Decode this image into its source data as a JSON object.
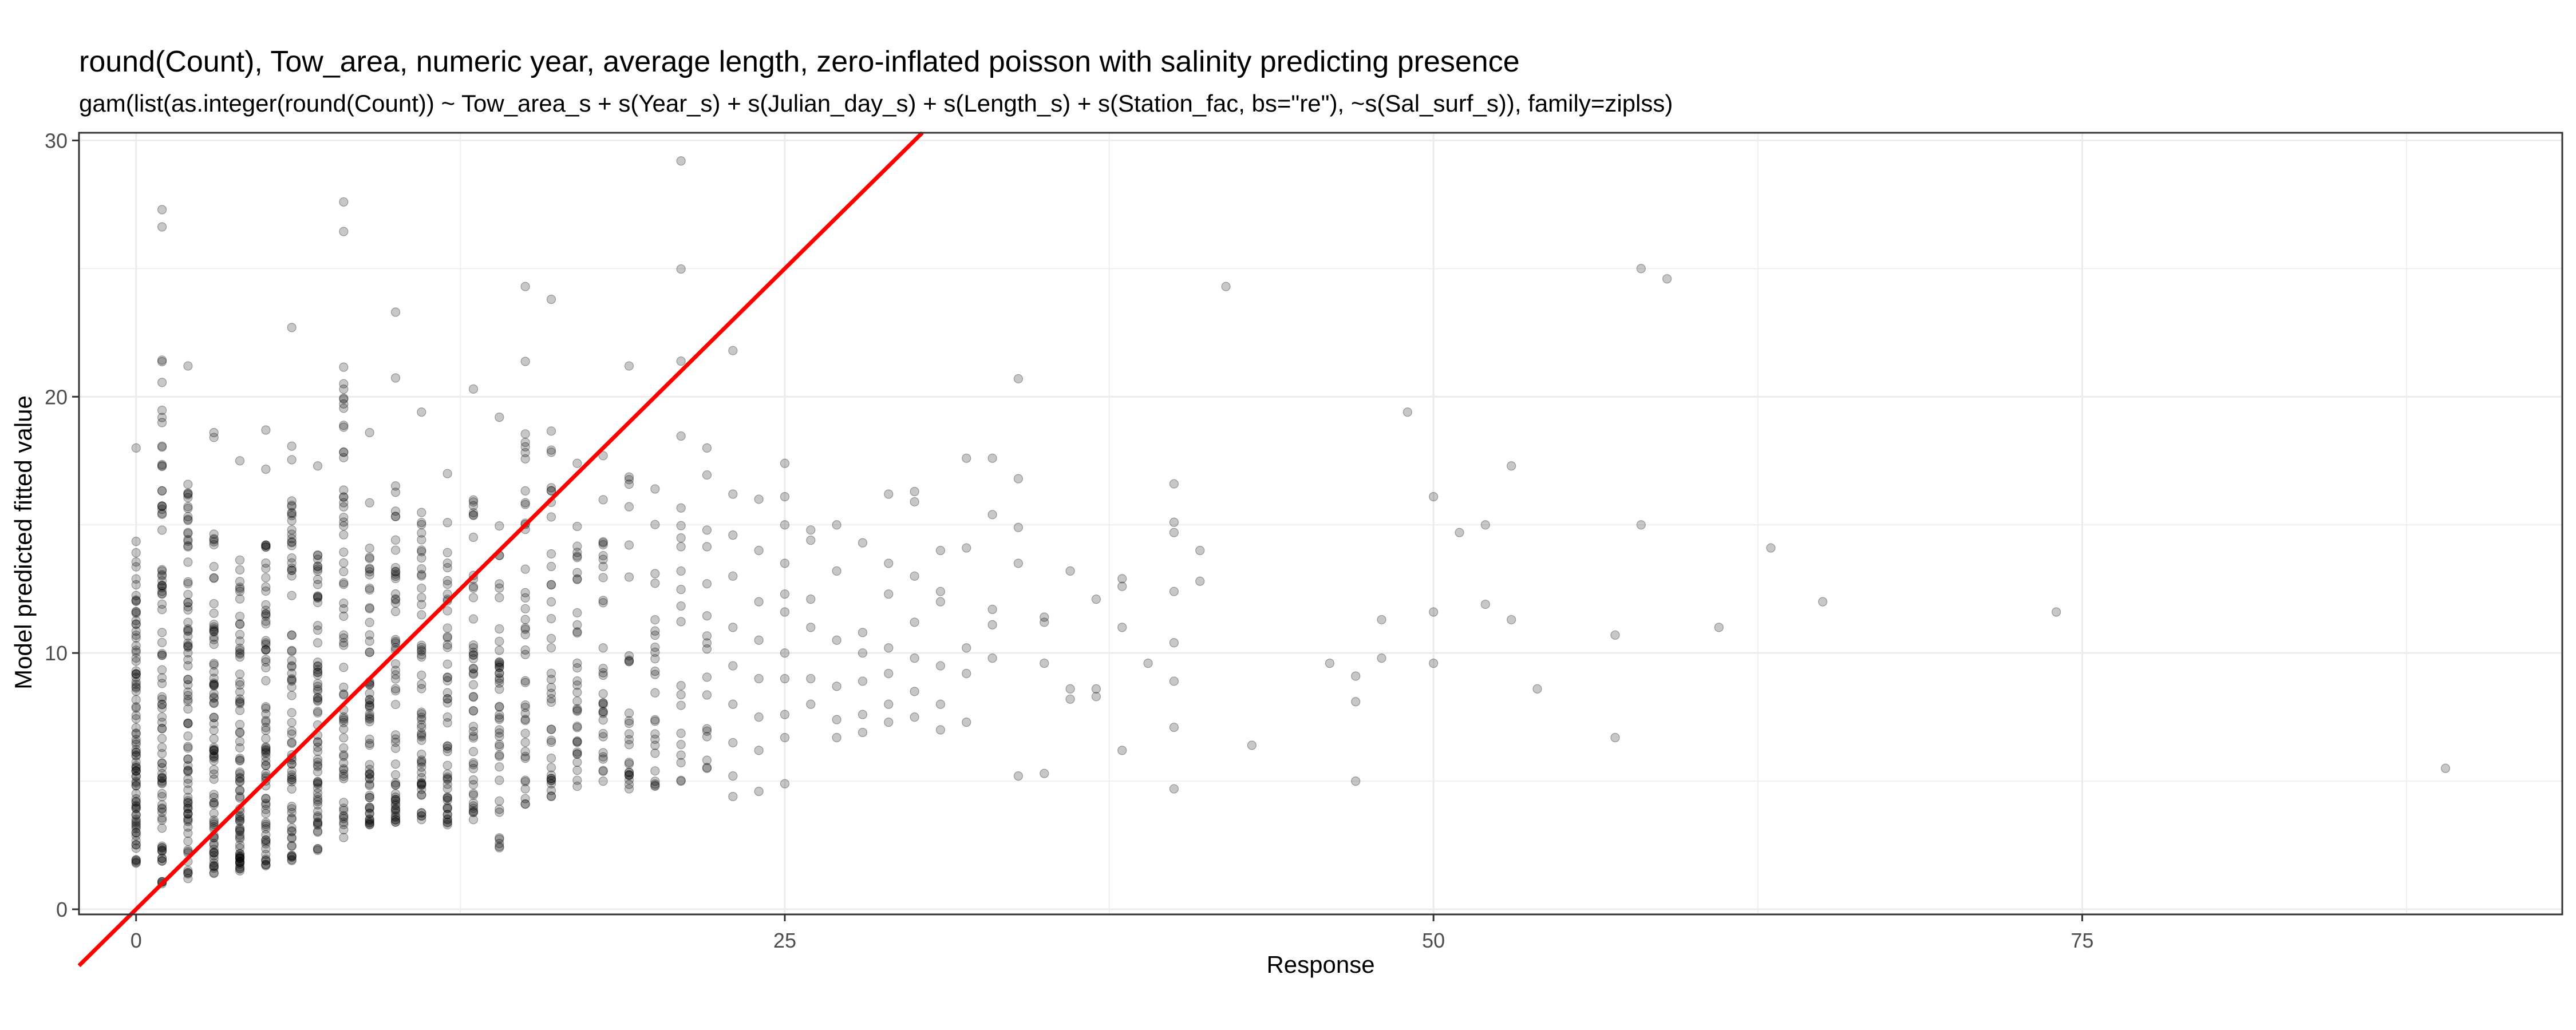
{
  "chart_data": {
    "type": "scatter",
    "title": "round(Count), Tow_area, numeric year, average length, zero-inflated poisson with salinity predicting presence",
    "subtitle": "gam(list(as.integer(round(Count)) ~ Tow_area_s + s(Year_s) + s(Julian_day_s) + s(Length_s) + s(Station_fac, bs=\"re\"), ~s(Sal_surf_s)), family=ziplss)",
    "xlabel": "Response",
    "ylabel": "Model predicted fitted value",
    "xlim": [
      -2.2,
      93.5
    ],
    "ylim": [
      -0.2,
      30.3
    ],
    "x_ticks": [
      0,
      25,
      50,
      75
    ],
    "y_ticks": [
      0,
      10,
      20,
      30
    ],
    "grid": true,
    "theme": "bw",
    "point_color": "#000000",
    "point_opacity": 0.22,
    "reference_line": {
      "slope": 1,
      "intercept": 0,
      "color": "#ff0000"
    },
    "x_columns": [
      0,
      1,
      2,
      3,
      4,
      5,
      6,
      7,
      8,
      9,
      10,
      11,
      12,
      13,
      14,
      15,
      16,
      17,
      18,
      19,
      20,
      21,
      22
    ],
    "column_ranges": [
      [
        1.8,
        18.0
      ],
      [
        1.0,
        27.3
      ],
      [
        1.2,
        21.2
      ],
      [
        1.4,
        18.6
      ],
      [
        1.5,
        17.5
      ],
      [
        1.7,
        18.7
      ],
      [
        1.9,
        22.7
      ],
      [
        2.3,
        17.3
      ],
      [
        2.8,
        27.6
      ],
      [
        3.3,
        18.6
      ],
      [
        3.4,
        23.3
      ],
      [
        3.5,
        19.4
      ],
      [
        3.3,
        17.0
      ],
      [
        3.5,
        20.3
      ],
      [
        2.4,
        19.2
      ],
      [
        4.1,
        24.3
      ],
      [
        4.4,
        23.8
      ],
      [
        4.8,
        17.4
      ],
      [
        5.0,
        17.7
      ],
      [
        4.7,
        21.2
      ],
      [
        4.8,
        16.4
      ],
      [
        5.0,
        29.2
      ],
      [
        5.5,
        18.0
      ]
    ],
    "points": [
      [
        23,
        21.8
      ],
      [
        23,
        16.2
      ],
      [
        23,
        14.6
      ],
      [
        23,
        13.0
      ],
      [
        23,
        11.0
      ],
      [
        23,
        9.5
      ],
      [
        23,
        8.0
      ],
      [
        23,
        6.5
      ],
      [
        23,
        5.2
      ],
      [
        23,
        4.4
      ],
      [
        24,
        16.0
      ],
      [
        24,
        14.0
      ],
      [
        24,
        12.0
      ],
      [
        24,
        10.5
      ],
      [
        24,
        9.0
      ],
      [
        24,
        7.5
      ],
      [
        24,
        6.2
      ],
      [
        24,
        4.6
      ],
      [
        25,
        17.4
      ],
      [
        25,
        16.1
      ],
      [
        25,
        15.0
      ],
      [
        25,
        13.5
      ],
      [
        25,
        12.3
      ],
      [
        25,
        11.6
      ],
      [
        25,
        10.0
      ],
      [
        25,
        9.0
      ],
      [
        25,
        7.6
      ],
      [
        25,
        6.7
      ],
      [
        25,
        4.9
      ],
      [
        26,
        14.8
      ],
      [
        26,
        14.4
      ],
      [
        26,
        12.1
      ],
      [
        26,
        11.0
      ],
      [
        26,
        9.0
      ],
      [
        26,
        8.0
      ],
      [
        27,
        15.0
      ],
      [
        27,
        13.2
      ],
      [
        27,
        10.5
      ],
      [
        27,
        8.7
      ],
      [
        27,
        7.4
      ],
      [
        27,
        6.7
      ],
      [
        28,
        14.3
      ],
      [
        28,
        10.8
      ],
      [
        28,
        10.0
      ],
      [
        28,
        8.9
      ],
      [
        28,
        7.6
      ],
      [
        28,
        6.9
      ],
      [
        29,
        16.2
      ],
      [
        29,
        13.5
      ],
      [
        29,
        12.3
      ],
      [
        29,
        10.2
      ],
      [
        29,
        9.2
      ],
      [
        29,
        8.0
      ],
      [
        29,
        7.3
      ],
      [
        30,
        16.3
      ],
      [
        30,
        15.9
      ],
      [
        30,
        13.0
      ],
      [
        30,
        11.2
      ],
      [
        30,
        9.8
      ],
      [
        30,
        8.5
      ],
      [
        30,
        7.5
      ],
      [
        31,
        14.0
      ],
      [
        31,
        12.4
      ],
      [
        31,
        12.0
      ],
      [
        31,
        9.5
      ],
      [
        31,
        8.0
      ],
      [
        31,
        7.0
      ],
      [
        32,
        17.6
      ],
      [
        32,
        14.1
      ],
      [
        32,
        10.2
      ],
      [
        32,
        9.2
      ],
      [
        32,
        7.3
      ],
      [
        33,
        17.6
      ],
      [
        33,
        15.4
      ],
      [
        33,
        11.7
      ],
      [
        33,
        11.1
      ],
      [
        33,
        9.8
      ],
      [
        34,
        20.7
      ],
      [
        34,
        16.8
      ],
      [
        34,
        14.9
      ],
      [
        34,
        13.5
      ],
      [
        34,
        5.2
      ],
      [
        35,
        11.4
      ],
      [
        35,
        11.2
      ],
      [
        35,
        9.6
      ],
      [
        35,
        5.3
      ],
      [
        36,
        13.2
      ],
      [
        36,
        8.6
      ],
      [
        36,
        8.2
      ],
      [
        37,
        12.1
      ],
      [
        37,
        8.6
      ],
      [
        37,
        8.3
      ],
      [
        38,
        12.9
      ],
      [
        38,
        12.6
      ],
      [
        38,
        11.0
      ],
      [
        38,
        6.2
      ],
      [
        39,
        9.6
      ],
      [
        40,
        16.6
      ],
      [
        40,
        15.1
      ],
      [
        40,
        14.7
      ],
      [
        40,
        12.4
      ],
      [
        40,
        10.4
      ],
      [
        40,
        8.9
      ],
      [
        40,
        7.1
      ],
      [
        40,
        4.7
      ],
      [
        41,
        14.0
      ],
      [
        41,
        12.8
      ],
      [
        42,
        24.3
      ],
      [
        43,
        6.4
      ],
      [
        46,
        9.6
      ],
      [
        47,
        9.1
      ],
      [
        47,
        8.1
      ],
      [
        47,
        5.0
      ],
      [
        48,
        11.3
      ],
      [
        48,
        9.8
      ],
      [
        49,
        19.4
      ],
      [
        50,
        16.1
      ],
      [
        50,
        11.6
      ],
      [
        50,
        9.6
      ],
      [
        51,
        14.7
      ],
      [
        52,
        15.0
      ],
      [
        52,
        11.9
      ],
      [
        53,
        17.3
      ],
      [
        53,
        11.3
      ],
      [
        54,
        8.6
      ],
      [
        57,
        10.7
      ],
      [
        57,
        6.7
      ],
      [
        58,
        25.0
      ],
      [
        58,
        15.0
      ],
      [
        59,
        24.6
      ],
      [
        61,
        11.0
      ],
      [
        63,
        14.1
      ],
      [
        65,
        12.0
      ],
      [
        74,
        11.6
      ],
      [
        89,
        5.5
      ]
    ]
  }
}
